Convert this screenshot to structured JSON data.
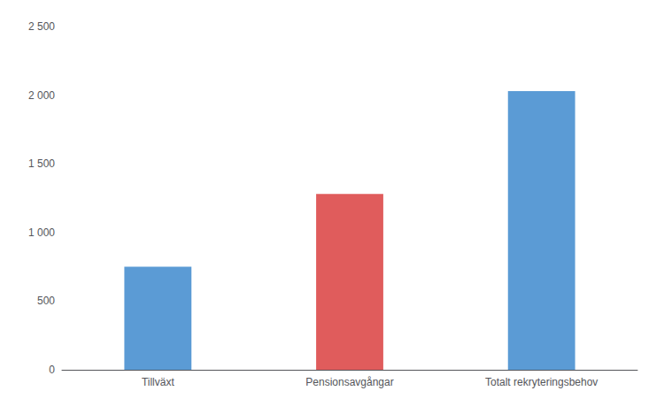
{
  "chart_data": {
    "type": "bar",
    "categories": [
      "Tillväxt",
      "Pensionsavgångar",
      "Totalt rekryteringsbehov"
    ],
    "values": [
      750,
      1280,
      2030
    ],
    "colors": [
      "#5B9BD5",
      "#E05C5C",
      "#5B9BD5"
    ],
    "ylim": [
      0,
      2500
    ],
    "yticks": [
      0,
      500,
      {
        "value": 1000,
        "label": "1 000"
      },
      {
        "value": 1500,
        "label": "1 500"
      },
      {
        "value": 2000,
        "label": "2 000"
      },
      {
        "value": 2500,
        "label": "2 500"
      }
    ],
    "grid": false
  }
}
